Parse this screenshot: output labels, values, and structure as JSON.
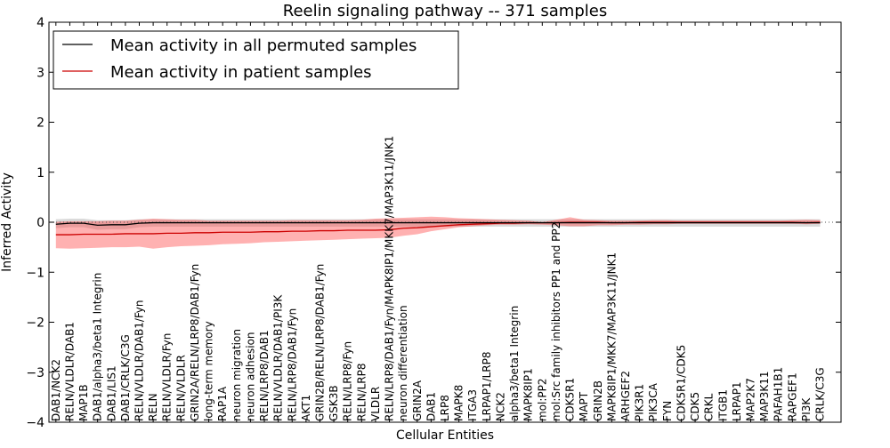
{
  "chart_data": {
    "type": "line",
    "title": "Reelin signaling pathway -- 371 samples",
    "xlabel": "Cellular Entities",
    "ylabel": "Inferred Activity",
    "ylim": [
      -4,
      4
    ],
    "yticks": [
      -4,
      -3,
      -2,
      -1,
      0,
      1,
      2,
      3,
      4
    ],
    "ytick_labels": [
      "−4",
      "−3",
      "−2",
      "−1",
      "0",
      "1",
      "2",
      "3",
      "4"
    ],
    "legend_position": "top-left",
    "categories": [
      "DAB1/NCK2",
      "RELN/VLDLR/DAB1",
      "MAP1B",
      "DAB1/alpha3/beta1 Integrin",
      "DAB1/LIS1",
      "DAB1/CRLK/C3G",
      "RELN/VLDLR/DAB1/Fyn",
      "RELN",
      "RELN/VLDLR/Fyn",
      "RELN/VLDLR",
      "GRIN2A/RELN/LRP8/DAB1/Fyn",
      "long-term memory",
      "RAP1A",
      "neuron migration",
      "neuron adhesion",
      "RELN/LRP8/DAB1",
      "RELN/VLDLR/DAB1/PI3K",
      "RELN/LRP8/DAB1/Fyn",
      "AKT1",
      "GRIN2B/RELN/LRP8/DAB1/Fyn",
      "GSK3B",
      "RELN/LRP8/Fyn",
      "RELN/LRP8",
      "VLDLR",
      "RELN/LRP8/DAB1/Fyn/MAPK8IP1/MKK7/MAP3K11/JNK1",
      "neuron differentiation",
      "GRIN2A",
      "DAB1",
      "LRP8",
      "MAPK8",
      "ITGA3",
      "LRPAP1/LRP8",
      "NCK2",
      "alpha3/beta1 Integrin",
      "MAPK8IP1",
      "mol:PP2",
      "mol:Src family inhibitors PP1 and PP2",
      "CDK5R1",
      "MAPT",
      "GRIN2B",
      "MAPK8IP1/MKK7/MAP3K11/JNK1",
      "ARHGEF2",
      "PIK3R1",
      "PIK3CA",
      "FYN",
      "CDK5R1/CDK5",
      "CDK5",
      "CRKL",
      "ITGB1",
      "LRPAP1",
      "MAP2K7",
      "MAP3K11",
      "PAFAH1B1",
      "RAPGEF1",
      "PI3K",
      "CRLK/C3G"
    ],
    "series": [
      {
        "name": "Mean activity in all permuted samples",
        "color": "#000000",
        "values": [
          -0.04,
          -0.02,
          -0.02,
          -0.06,
          -0.05,
          -0.05,
          -0.02,
          -0.01,
          -0.01,
          -0.01,
          -0.01,
          -0.01,
          -0.01,
          -0.01,
          -0.01,
          -0.01,
          -0.01,
          -0.01,
          -0.01,
          -0.01,
          -0.01,
          -0.01,
          -0.01,
          -0.01,
          -0.01,
          -0.01,
          -0.01,
          -0.01,
          -0.01,
          -0.01,
          -0.01,
          -0.01,
          -0.01,
          -0.01,
          -0.01,
          -0.01,
          -0.01,
          -0.01,
          -0.01,
          -0.01,
          -0.01,
          -0.01,
          -0.01,
          -0.01,
          -0.01,
          -0.01,
          -0.01,
          -0.01,
          -0.01,
          -0.01,
          -0.01,
          -0.01,
          -0.01,
          -0.01,
          -0.01,
          -0.01
        ],
        "band_upper": [
          0.06,
          0.07,
          0.07,
          0.04,
          0.04,
          0.04,
          0.06,
          0.06,
          0.06,
          0.06,
          0.06,
          0.06,
          0.06,
          0.06,
          0.06,
          0.06,
          0.06,
          0.06,
          0.06,
          0.06,
          0.06,
          0.06,
          0.06,
          0.06,
          0.06,
          0.06,
          0.06,
          0.06,
          0.06,
          0.06,
          0.06,
          0.06,
          0.06,
          0.06,
          0.06,
          0.06,
          0.06,
          0.06,
          0.06,
          0.06,
          0.06,
          0.06,
          0.06,
          0.06,
          0.06,
          0.06,
          0.06,
          0.06,
          0.06,
          0.06,
          0.06,
          0.06,
          0.06,
          0.06,
          0.06,
          0.06
        ],
        "band_lower": [
          -0.12,
          -0.1,
          -0.1,
          -0.15,
          -0.14,
          -0.14,
          -0.1,
          -0.09,
          -0.09,
          -0.09,
          -0.09,
          -0.09,
          -0.09,
          -0.09,
          -0.09,
          -0.09,
          -0.09,
          -0.09,
          -0.09,
          -0.09,
          -0.09,
          -0.09,
          -0.09,
          -0.09,
          -0.09,
          -0.09,
          -0.09,
          -0.09,
          -0.09,
          -0.09,
          -0.09,
          -0.09,
          -0.09,
          -0.09,
          -0.09,
          -0.09,
          -0.09,
          -0.09,
          -0.09,
          -0.09,
          -0.09,
          -0.09,
          -0.09,
          -0.09,
          -0.09,
          -0.09,
          -0.09,
          -0.09,
          -0.09,
          -0.09,
          -0.09,
          -0.09,
          -0.09,
          -0.09,
          -0.09,
          -0.09
        ]
      },
      {
        "name": "Mean activity in patient samples",
        "color": "#cc0000",
        "values": [
          -0.25,
          -0.25,
          -0.24,
          -0.24,
          -0.24,
          -0.23,
          -0.23,
          -0.23,
          -0.22,
          -0.22,
          -0.21,
          -0.21,
          -0.2,
          -0.2,
          -0.2,
          -0.19,
          -0.19,
          -0.18,
          -0.18,
          -0.17,
          -0.17,
          -0.16,
          -0.16,
          -0.16,
          -0.15,
          -0.12,
          -0.11,
          -0.09,
          -0.07,
          -0.05,
          -0.04,
          -0.03,
          -0.02,
          -0.02,
          -0.01,
          -0.01,
          -0.01,
          0.0,
          0.0,
          0.0,
          -0.01,
          -0.01,
          0.0,
          0.0,
          0.0,
          0.0,
          0.0,
          0.0,
          0.0,
          0.0,
          0.0,
          0.0,
          0.0,
          0.0,
          -0.01,
          0.0
        ],
        "band_upper": [
          0.01,
          0.02,
          0.02,
          0.02,
          0.03,
          0.03,
          0.05,
          0.07,
          0.06,
          0.05,
          0.05,
          0.03,
          0.03,
          0.03,
          0.03,
          0.03,
          0.03,
          0.04,
          0.04,
          0.04,
          0.04,
          0.04,
          0.05,
          0.07,
          0.08,
          0.09,
          0.1,
          0.11,
          0.1,
          0.08,
          0.07,
          0.06,
          0.05,
          0.04,
          0.03,
          0.0,
          0.05,
          0.1,
          0.05,
          0.04,
          0.03,
          0.03,
          0.03,
          0.04,
          0.04,
          0.03,
          0.03,
          0.03,
          0.03,
          0.03,
          0.03,
          0.03,
          0.03,
          0.04,
          0.05,
          0.04
        ],
        "band_lower": [
          -0.52,
          -0.53,
          -0.52,
          -0.51,
          -0.5,
          -0.5,
          -0.49,
          -0.53,
          -0.5,
          -0.48,
          -0.47,
          -0.46,
          -0.44,
          -0.43,
          -0.42,
          -0.4,
          -0.39,
          -0.38,
          -0.37,
          -0.36,
          -0.35,
          -0.34,
          -0.33,
          -0.32,
          -0.31,
          -0.27,
          -0.24,
          -0.18,
          -0.14,
          -0.1,
          -0.08,
          -0.06,
          -0.05,
          -0.05,
          -0.04,
          -0.05,
          -0.06,
          -0.08,
          -0.08,
          -0.06,
          -0.06,
          -0.05,
          -0.05,
          -0.04,
          -0.04,
          -0.03,
          -0.03,
          -0.03,
          -0.03,
          -0.03,
          -0.03,
          -0.03,
          -0.03,
          -0.03,
          -0.04,
          -0.03
        ]
      }
    ]
  }
}
